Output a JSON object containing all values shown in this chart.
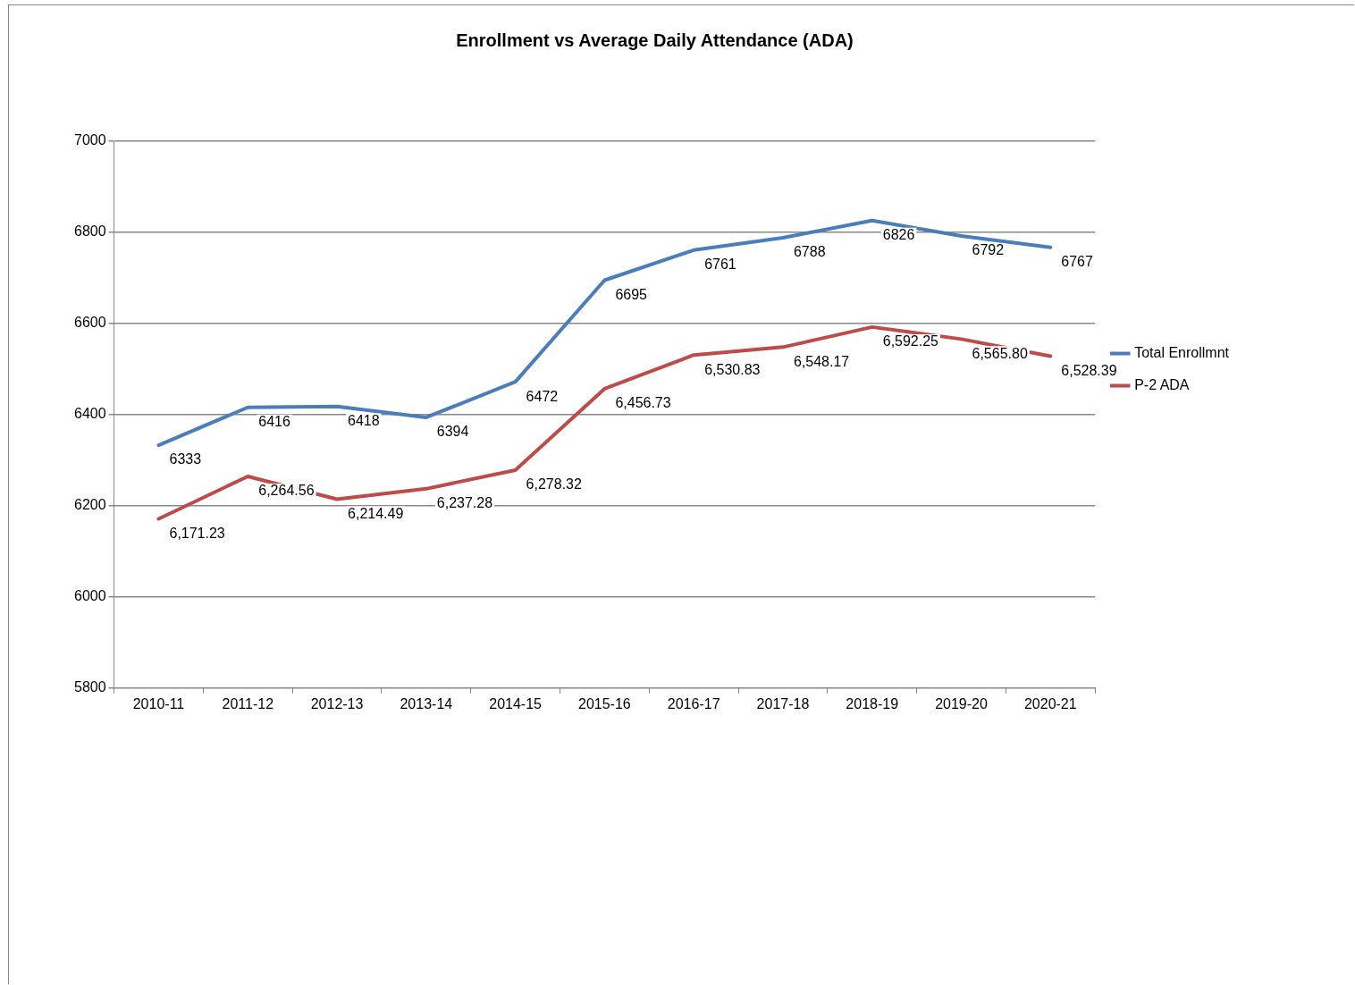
{
  "chart_data": {
    "type": "line",
    "title": "Enrollment vs Average Daily Attendance (ADA)",
    "categories": [
      "2010-11",
      "2011-12",
      "2012-13",
      "2013-14",
      "2014-15",
      "2015-16",
      "2016-17",
      "2017-18",
      "2018-19",
      "2019-20",
      "2020-21"
    ],
    "series": [
      {
        "name": "Total Enrollmnt",
        "color": "#4a7ebb",
        "values": [
          6333,
          6416,
          6418,
          6394,
          6472,
          6695,
          6761,
          6788,
          6826,
          6792,
          6767
        ],
        "value_labels": [
          "6333",
          "6416",
          "6418",
          "6394",
          "6472",
          "6695",
          "6761",
          "6788",
          "6826",
          "6792",
          "6767"
        ]
      },
      {
        "name": "P-2 ADA",
        "color": "#be4b48",
        "values": [
          6171.23,
          6264.56,
          6214.49,
          6237.28,
          6278.32,
          6456.73,
          6530.83,
          6548.17,
          6592.25,
          6565.8,
          6528.39
        ],
        "value_labels": [
          "6,171.23",
          "6,264.56",
          "6,214.49",
          "6,237.28",
          "6,278.32",
          "6,456.73",
          "6,530.83",
          "6,548.17",
          "6,592.25",
          "6,565.80",
          "6,528.39"
        ]
      }
    ],
    "ylim": [
      5800,
      7000
    ],
    "yticks": [
      5800,
      6000,
      6200,
      6400,
      6600,
      6800,
      7000
    ],
    "grid": "y",
    "legend": "right",
    "marker": "none",
    "line_style": "solid"
  }
}
